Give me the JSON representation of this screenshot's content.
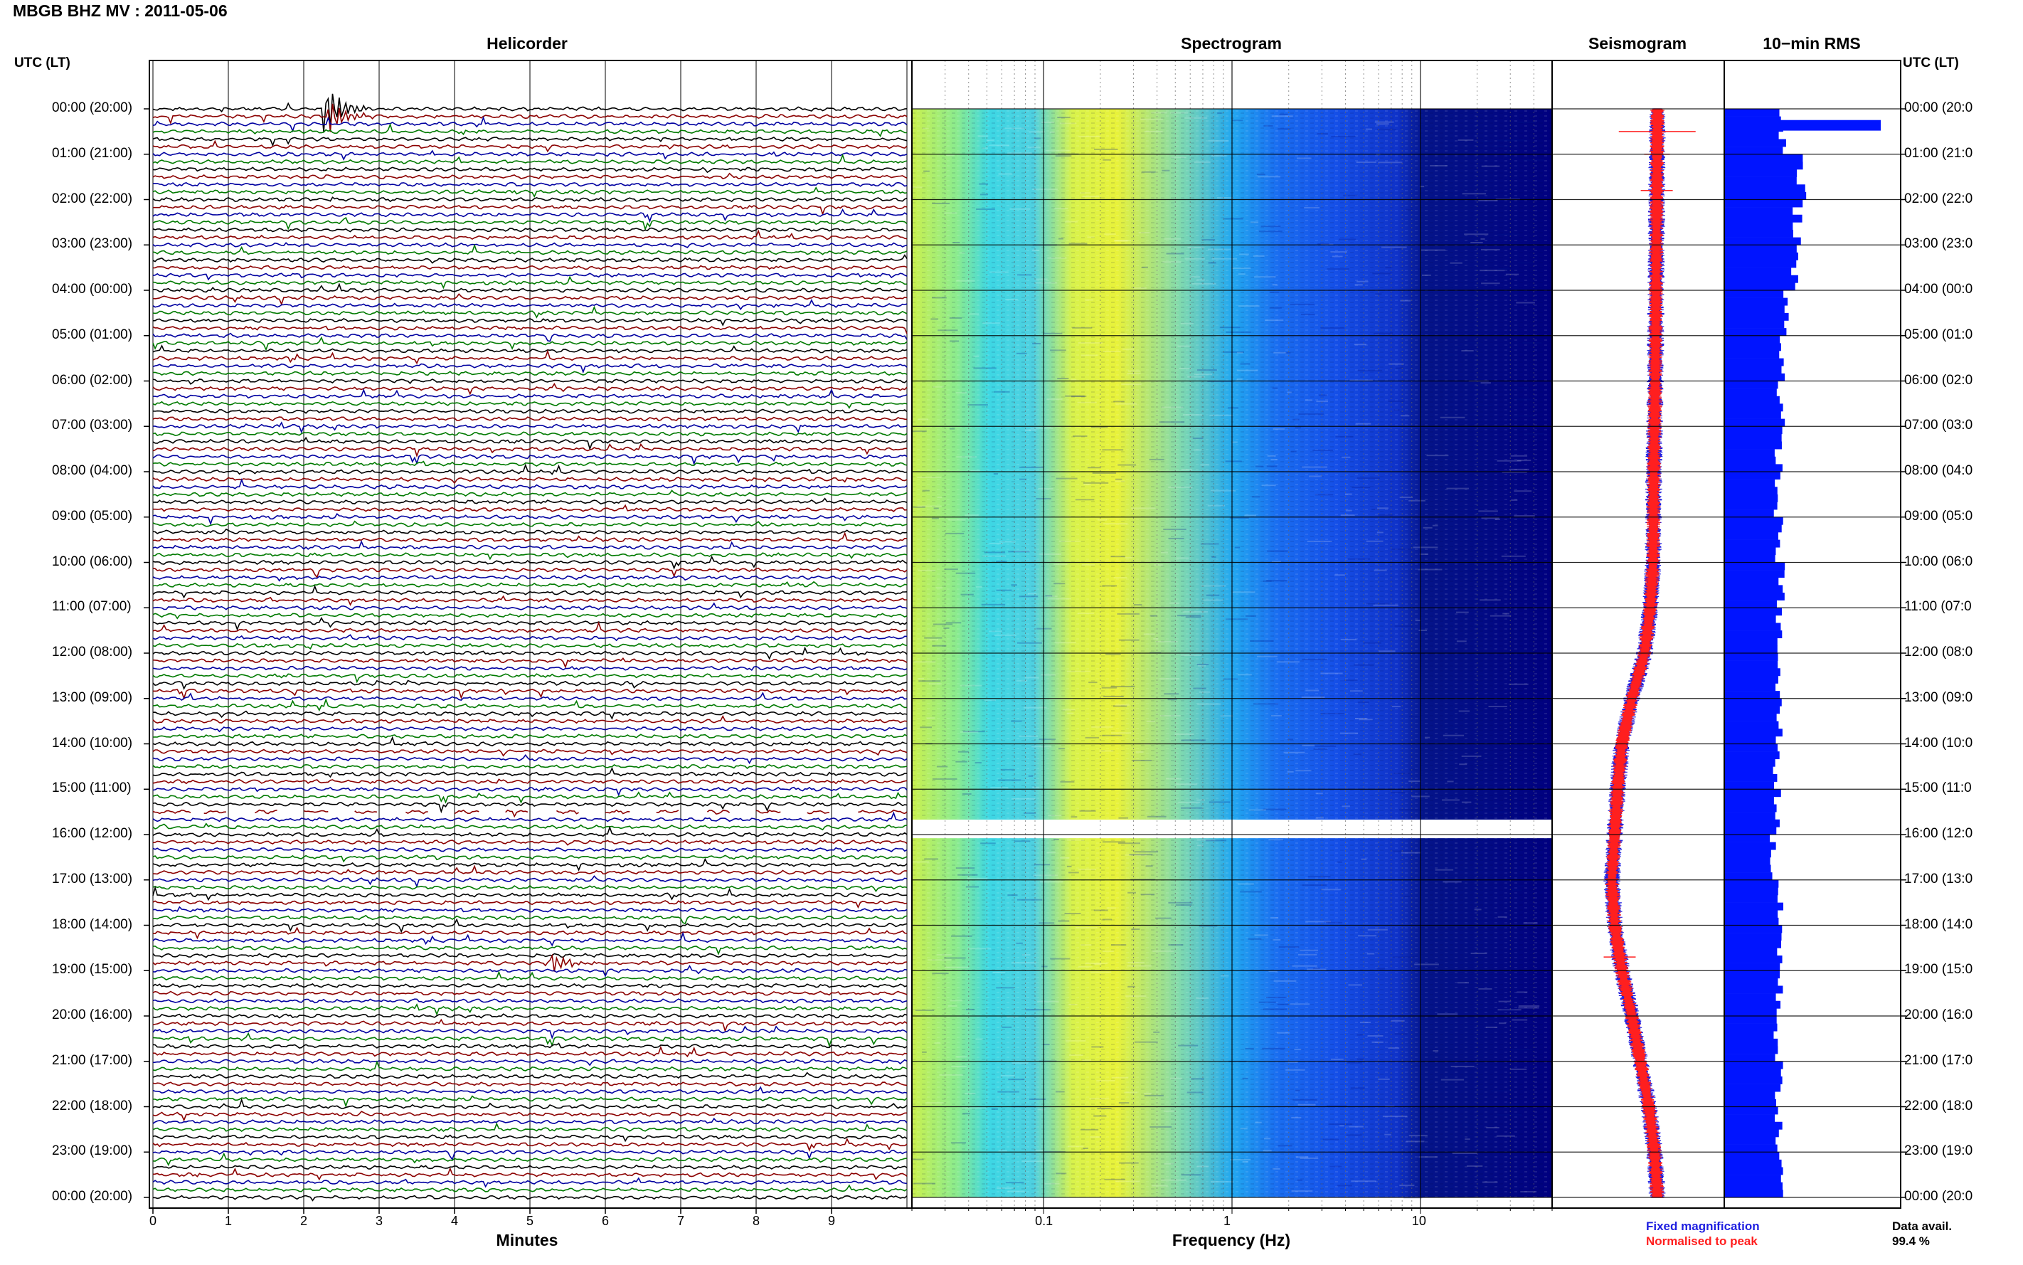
{
  "title": "MBGB BHZ MV : 2011-05-06",
  "panels": {
    "helicorder": "Helicorder",
    "spectrogram": "Spectrogram",
    "seismogram": "Seismogram",
    "rms": "10−min RMS"
  },
  "axis_labels": {
    "time_left": "UTC (LT)",
    "time_right": "UTC (LT)",
    "minutes": "Minutes",
    "frequency": "Frequency (Hz)"
  },
  "legend": {
    "fixed": "Fixed magnification",
    "normalised": "Normalised to peak",
    "fixed_color": "#1f1fe0",
    "normalised_color": "#ff1f1f"
  },
  "data_availability": {
    "label": "Data avail.",
    "value": "99.4 %"
  },
  "colors": {
    "trace_cycle": [
      "#000000",
      "#8b0000",
      "#0000a0",
      "#007a00"
    ],
    "spectrogram_colormap": [
      "#00007f",
      "#0032ff",
      "#00b4ff",
      "#3fffbf",
      "#d7ff28",
      "#ffd600",
      "#ff7800"
    ],
    "rms_bar": "#0014ff",
    "seismo_fixed": "#1f1fe0",
    "seismo_norm": "#ff1f1f"
  },
  "chart_data": [
    {
      "type": "line",
      "panel": "Helicorder",
      "xlabel": "Minutes",
      "x_ticks": [
        0,
        1,
        2,
        3,
        4,
        5,
        6,
        7,
        8,
        9
      ],
      "xlim": [
        0,
        10
      ],
      "lines_per_hour": 6,
      "total_lines": 144,
      "time_labels": [
        "00:00 (20:00)",
        "01:00 (21:00)",
        "02:00 (22:00)",
        "03:00 (23:00)",
        "04:00 (00:00)",
        "05:00 (01:00)",
        "06:00 (02:00)",
        "07:00 (03:00)",
        "08:00 (04:00)",
        "09:00 (05:00)",
        "10:00 (06:00)",
        "11:00 (07:00)",
        "12:00 (08:00)",
        "13:00 (09:00)",
        "14:00 (10:00)",
        "15:00 (11:00)",
        "16:00 (12:00)",
        "17:00 (13:00)",
        "18:00 (14:00)",
        "19:00 (15:00)",
        "20:00 (16:00)",
        "21:00 (17:00)",
        "22:00 (18:00)",
        "23:00 (19:00)",
        "00:00 (20:00)"
      ],
      "right_time_labels": [
        "00:00 (20:0",
        "01:00 (21:0",
        "02:00 (22:0",
        "03:00 (23:0",
        "04:00 (00:0",
        "05:00 (01:0",
        "06:00 (02:0",
        "07:00 (03:0",
        "08:00 (04:0",
        "09:00 (05:0",
        "10:00 (06:0",
        "11:00 (07:0",
        "12:00 (08:0",
        "13:00 (09:0",
        "14:00 (10:0",
        "15:00 (11:0",
        "16:00 (12:0",
        "17:00 (13:0",
        "18:00 (14:0",
        "19:00 (15:0",
        "20:00 (16:0",
        "21:00 (17:0",
        "22:00 (18:0",
        "23:00 (19:0",
        "00:00 (20:0"
      ],
      "events": [
        {
          "line": 0,
          "minute": 2.3,
          "amplitude": 4.0
        },
        {
          "line": 1,
          "minute": 2.35,
          "amplitude": 2.5
        },
        {
          "line": 113,
          "minute": 5.3,
          "amplitude": 1.6
        }
      ],
      "gap": {
        "line": 93,
        "from_minute": 0.5,
        "to_minute": 9.6
      }
    },
    {
      "type": "heatmap",
      "panel": "Spectrogram",
      "xlabel": "Frequency (Hz)",
      "x_scale": "log",
      "xlim": [
        0.02,
        50
      ],
      "x_ticks": [
        0.1,
        1,
        10
      ],
      "x_tick_labels": [
        "0.1",
        "1",
        "10"
      ],
      "gap_hours": [
        15.67,
        16.08
      ]
    },
    {
      "type": "line",
      "panel": "Seismogram",
      "series": [
        {
          "name": "Fixed magnification",
          "color": "#1f1fe0"
        },
        {
          "name": "Normalised to peak",
          "color": "#ff1f1f"
        }
      ],
      "hours": [
        0,
        2,
        4,
        6,
        8,
        10,
        11,
        12,
        13,
        14,
        15,
        16,
        17,
        18,
        19,
        20,
        21,
        22,
        23,
        24
      ],
      "baseline_offset": [
        0,
        -0.5,
        -1,
        -1.5,
        -2.5,
        -3,
        -5,
        -9,
        -18,
        -25,
        -28,
        -30,
        -32,
        -30,
        -25,
        -18,
        -12,
        -6,
        -2,
        0
      ],
      "spikes": [
        {
          "hour": 0.5,
          "size": 60
        },
        {
          "hour": 1.0,
          "size": 20
        },
        {
          "hour": 1.8,
          "size": 25
        },
        {
          "hour": 18.7,
          "size": 25
        }
      ]
    },
    {
      "type": "bar",
      "panel": "10-min RMS",
      "orientation": "horizontal",
      "bars_per_hour": 6,
      "hourly_rms": [
        0.75,
        1.0,
        0.95,
        0.9,
        0.78,
        0.75,
        0.72,
        0.7,
        0.68,
        0.7,
        0.72,
        0.7,
        0.68,
        0.7,
        0.67,
        0.68,
        0.62,
        0.7,
        0.72,
        0.7,
        0.68,
        0.7,
        0.69,
        0.71
      ],
      "peak_rms": {
        "hour": 0.33,
        "value": 2.0
      }
    }
  ]
}
